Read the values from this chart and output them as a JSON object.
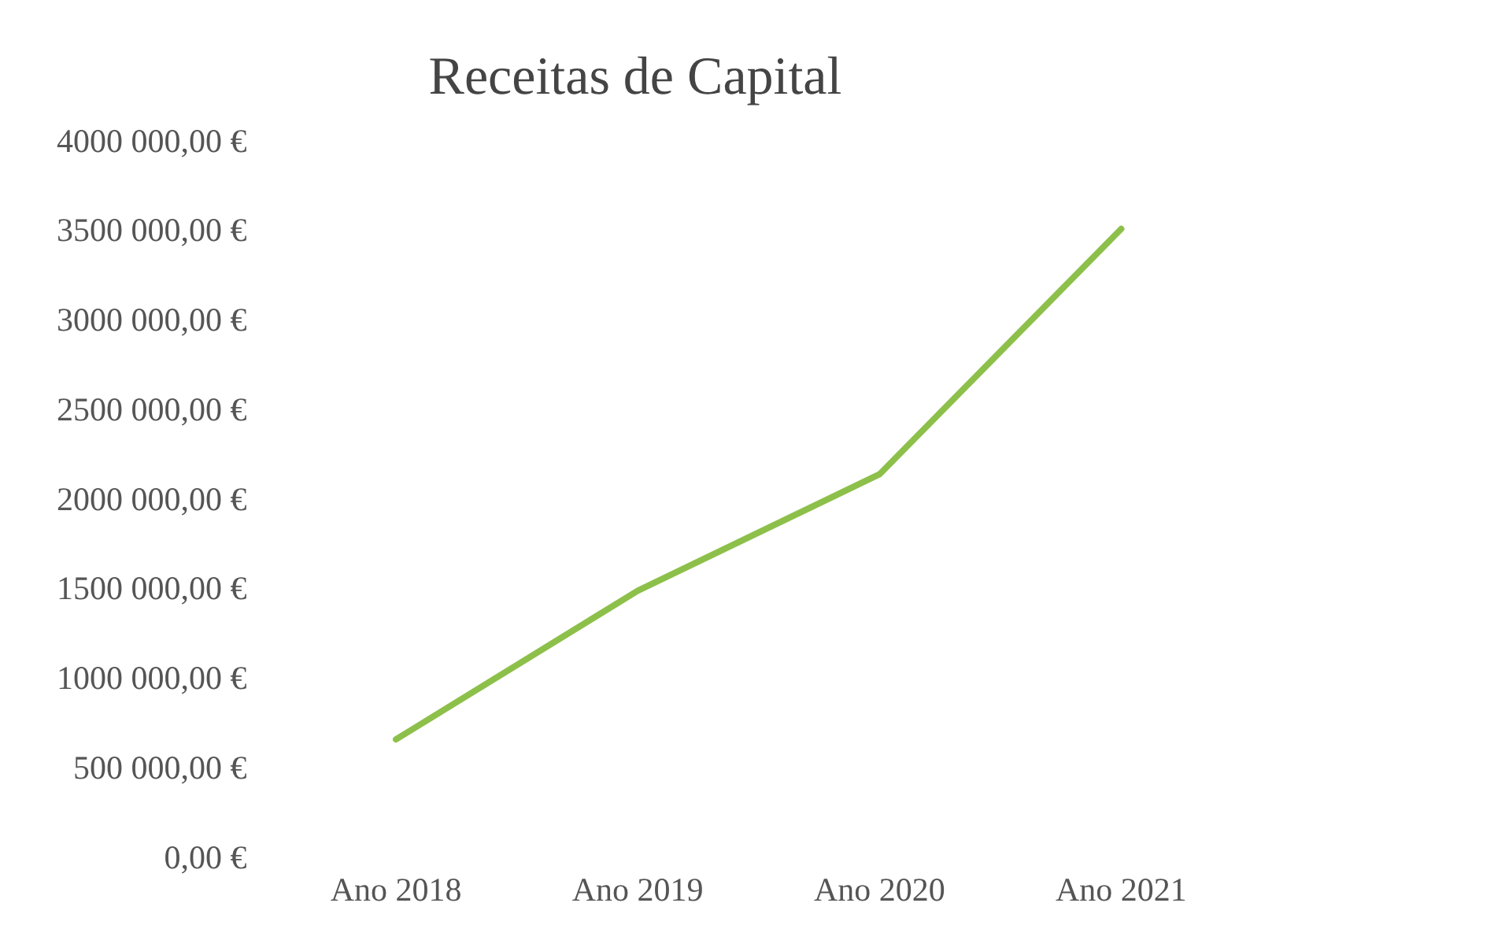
{
  "chart_data": {
    "type": "line",
    "title": "Receitas de Capital",
    "categories": [
      "Ano 2018",
      "Ano 2019",
      "Ano 2020",
      "Ano 2021"
    ],
    "series": [
      {
        "color": "#8dc04a",
        "values": [
          670000,
          1500000,
          2150000,
          3520000
        ]
      }
    ],
    "ylim": [
      0,
      4000000
    ],
    "yticks": [
      {
        "value": 0,
        "label": "0,00 €"
      },
      {
        "value": 500000,
        "label": "500 000,00 €"
      },
      {
        "value": 1000000,
        "label": "1000 000,00 €"
      },
      {
        "value": 1500000,
        "label": "1500 000,00 €"
      },
      {
        "value": 2000000,
        "label": "2000 000,00 €"
      },
      {
        "value": 2500000,
        "label": "2500 000,00 €"
      },
      {
        "value": 3000000,
        "label": "3000 000,00 €"
      },
      {
        "value": 3500000,
        "label": "3500 000,00 €"
      },
      {
        "value": 4000000,
        "label": "4000 000,00 €"
      }
    ],
    "grid": false,
    "legend": false,
    "marker": "none",
    "line_style": "solid"
  }
}
